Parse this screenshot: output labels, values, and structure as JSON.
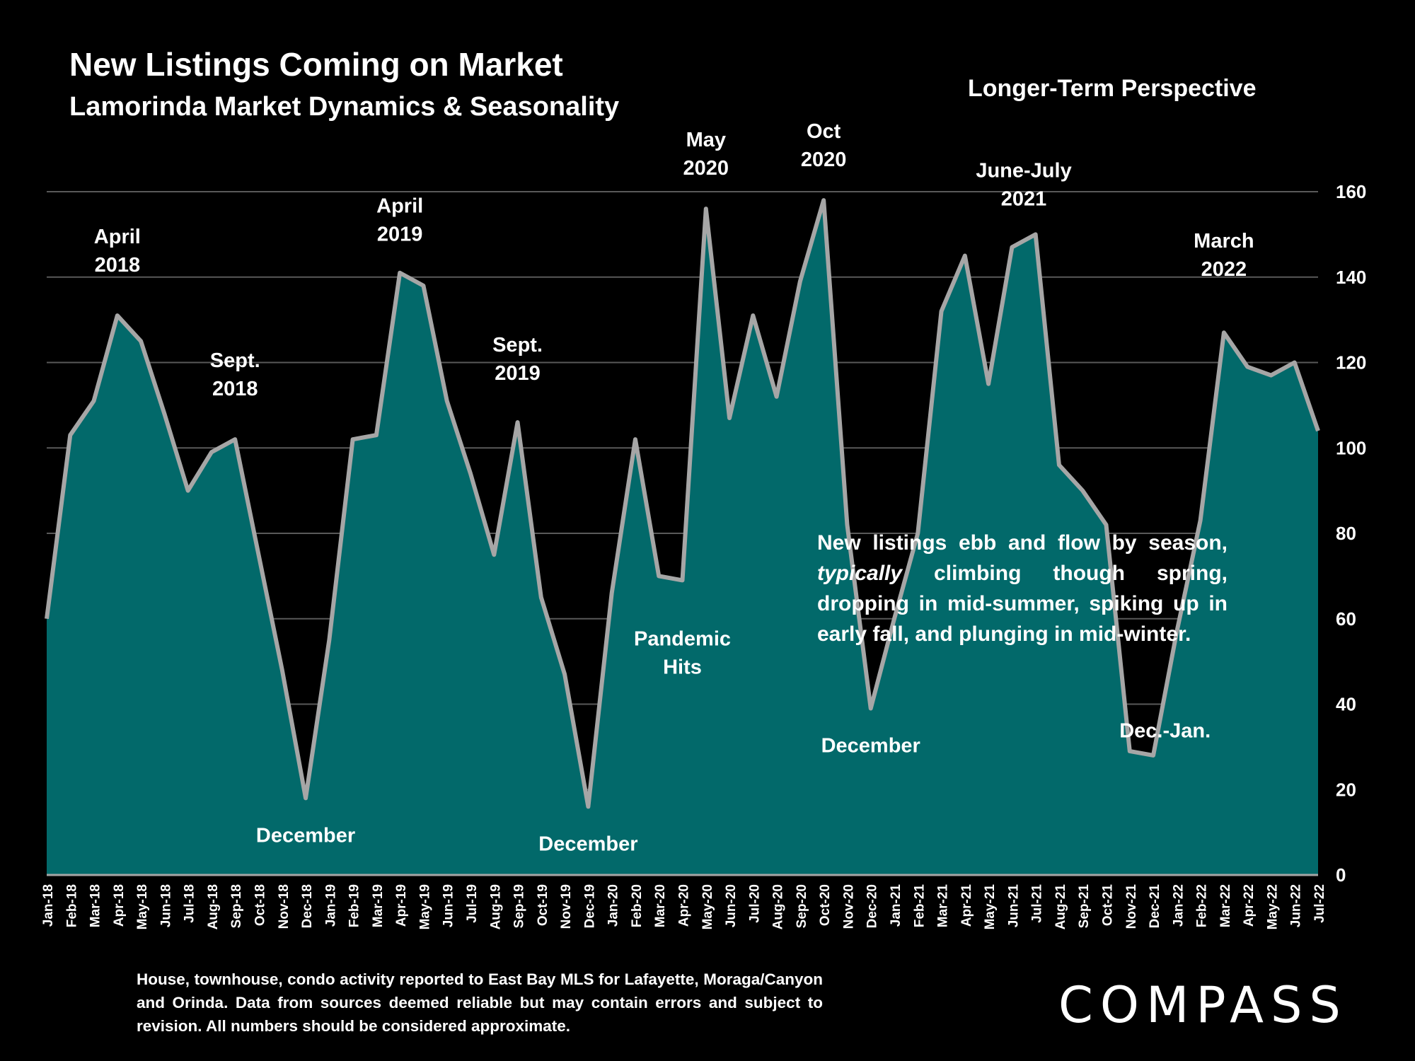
{
  "header": {
    "title": "New Listings Coming on Market",
    "subtitle": "Lamorinda Market Dynamics & Seasonality",
    "perspective": "Longer-Term Perspective"
  },
  "note": {
    "before": "New listings ebb and flow by season, ",
    "emph": "typically",
    "after": " climbing though spring, dropping in mid-summer, spiking up in early fall, and plunging in mid-winter."
  },
  "footnote": "House, townhouse, condo activity reported to East Bay MLS for Lafayette, Moraga/Canyon and Orinda. Data from sources deemed reliable but may contain errors and subject to revision. All numbers should be considered approximate.",
  "logo": "COMPASS",
  "colors": {
    "area": "#02696A",
    "line": "#A6A6A6",
    "grid": "#595959",
    "text": "#FFFFFF",
    "background": "#000000"
  },
  "chart_data": {
    "type": "area",
    "categories": [
      "Jan-18",
      "Feb-18",
      "Mar-18",
      "Apr-18",
      "May-18",
      "Jun-18",
      "Jul-18",
      "Aug-18",
      "Sep-18",
      "Oct-18",
      "Nov-18",
      "Dec-18",
      "Jan-19",
      "Feb-19",
      "Mar-19",
      "Apr-19",
      "May-19",
      "Jun-19",
      "Jul-19",
      "Aug-19",
      "Sep-19",
      "Oct-19",
      "Nov-19",
      "Dec-19",
      "Jan-20",
      "Feb-20",
      "Mar-20",
      "Apr-20",
      "May-20",
      "Jun-20",
      "Jul-20",
      "Aug-20",
      "Sep-20",
      "Oct-20",
      "Nov-20",
      "Dec-20",
      "Jan-21",
      "Feb-21",
      "Mar-21",
      "Apr-21",
      "May-21",
      "Jun-21",
      "Jul-21",
      "Aug-21",
      "Sep-21",
      "Oct-21",
      "Nov-21",
      "Dec-21",
      "Jan-22",
      "Feb-22",
      "Mar-22",
      "Apr-22",
      "May-22",
      "Jun-22",
      "Jul-22"
    ],
    "values": [
      60,
      103,
      111,
      131,
      125,
      108,
      90,
      99,
      102,
      75,
      48,
      18,
      55,
      102,
      103,
      141,
      138,
      111,
      94,
      75,
      106,
      65,
      47,
      16,
      66,
      102,
      70,
      69,
      156,
      107,
      131,
      112,
      139,
      158,
      82,
      39,
      60,
      80,
      132,
      145,
      115,
      147,
      150,
      96,
      90,
      82,
      29,
      28,
      57,
      83,
      127,
      119,
      117,
      120,
      104
    ],
    "ylim": [
      0,
      160
    ],
    "y_ticks": [
      0,
      20,
      40,
      60,
      80,
      100,
      120,
      140,
      160
    ],
    "grid": true,
    "annotations": [
      {
        "lines": [
          "April",
          "2018"
        ],
        "at": 3,
        "dy": -62
      },
      {
        "lines": [
          "Sept.",
          "2018"
        ],
        "at": 8,
        "dy": -62
      },
      {
        "lines": [
          "April",
          "2019"
        ],
        "at": 15,
        "dy": -45
      },
      {
        "lines": [
          "Sept.",
          "2019"
        ],
        "at": 20,
        "dy": -60
      },
      {
        "lines": [
          "May",
          "2020"
        ],
        "at": 28,
        "dy": -48
      },
      {
        "lines": [
          "Oct",
          "2020"
        ],
        "at": 33,
        "dy": -48
      },
      {
        "lines": [
          "June-July",
          "2021"
        ],
        "at": 41.5,
        "dy": -50
      },
      {
        "lines": [
          "March",
          "2022"
        ],
        "at": 50,
        "dy": -80
      },
      {
        "lines": [
          "December"
        ],
        "at": 11,
        "dy": 62
      },
      {
        "lines": [
          "December"
        ],
        "at": 23,
        "dy": 62
      },
      {
        "lines": [
          "Pandemic",
          "Hits"
        ],
        "at": 27,
        "dy": 92
      },
      {
        "lines": [
          "December"
        ],
        "at": 35,
        "dy": 62
      },
      {
        "lines": [
          "Dec.-Jan."
        ],
        "at": 47.5,
        "dy": 62
      }
    ]
  }
}
